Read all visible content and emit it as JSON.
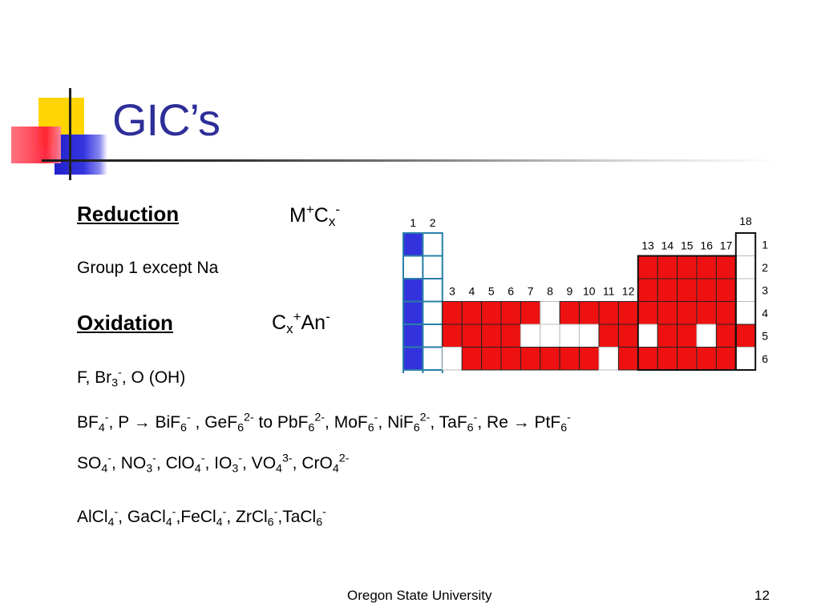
{
  "slide": {
    "title": "GIC’s",
    "reduction": {
      "label": "Reduction",
      "formula_main": "M",
      "formula_sup1": "+",
      "formula_c": "C",
      "formula_sub": "x",
      "formula_sup2": "-"
    },
    "group_text": "Group 1 except Na",
    "oxidation": {
      "label": "Oxidation",
      "formula_c": "C",
      "formula_sub": "x",
      "formula_sup1": "+",
      "formula_an": "An",
      "formula_sup2": "-"
    },
    "line_f": [
      "F, Br",
      "3",
      "-",
      ", O (OH)"
    ],
    "line_bf": [
      "BF",
      "4",
      "-",
      ", P → BiF",
      "6",
      "-",
      " , GeF",
      "6",
      "2-",
      " to PbF",
      "6",
      "2-",
      ", MoF",
      "6",
      "-",
      ", NiF",
      "6",
      "2-",
      ", TaF",
      "6",
      "-",
      ", Re → PtF",
      "6",
      "-"
    ],
    "line_so": [
      "SO",
      "4",
      "-",
      ", NO",
      "3",
      "-",
      ", ClO",
      "4",
      "-",
      ", IO",
      "3",
      "-",
      ", VO",
      "4",
      "3-",
      ", CrO",
      "4",
      "2-"
    ],
    "line_al": [
      "AlCl",
      "4",
      "-",
      ", GaCl",
      "4",
      "-",
      ",FeCl",
      "4",
      "-",
      ", ZrCl",
      "6",
      "-",
      ",TaCl",
      "6",
      "-"
    ]
  },
  "periodic_table": {
    "group_labels": [
      "1",
      "2",
      "3",
      "4",
      "5",
      "6",
      "7",
      "8",
      "9",
      "10",
      "11",
      "12",
      "13",
      "14",
      "15",
      "16",
      "17",
      "18"
    ],
    "period_labels": [
      "1",
      "2",
      "3",
      "4",
      "5",
      "6"
    ],
    "colors": {
      "group1": "#3333dd",
      "highlight": "#ee1111",
      "empty": "#ffffff",
      "border": "#2a7fa8"
    }
  },
  "footer": {
    "institution": "Oregon State University",
    "page_number": "12"
  }
}
